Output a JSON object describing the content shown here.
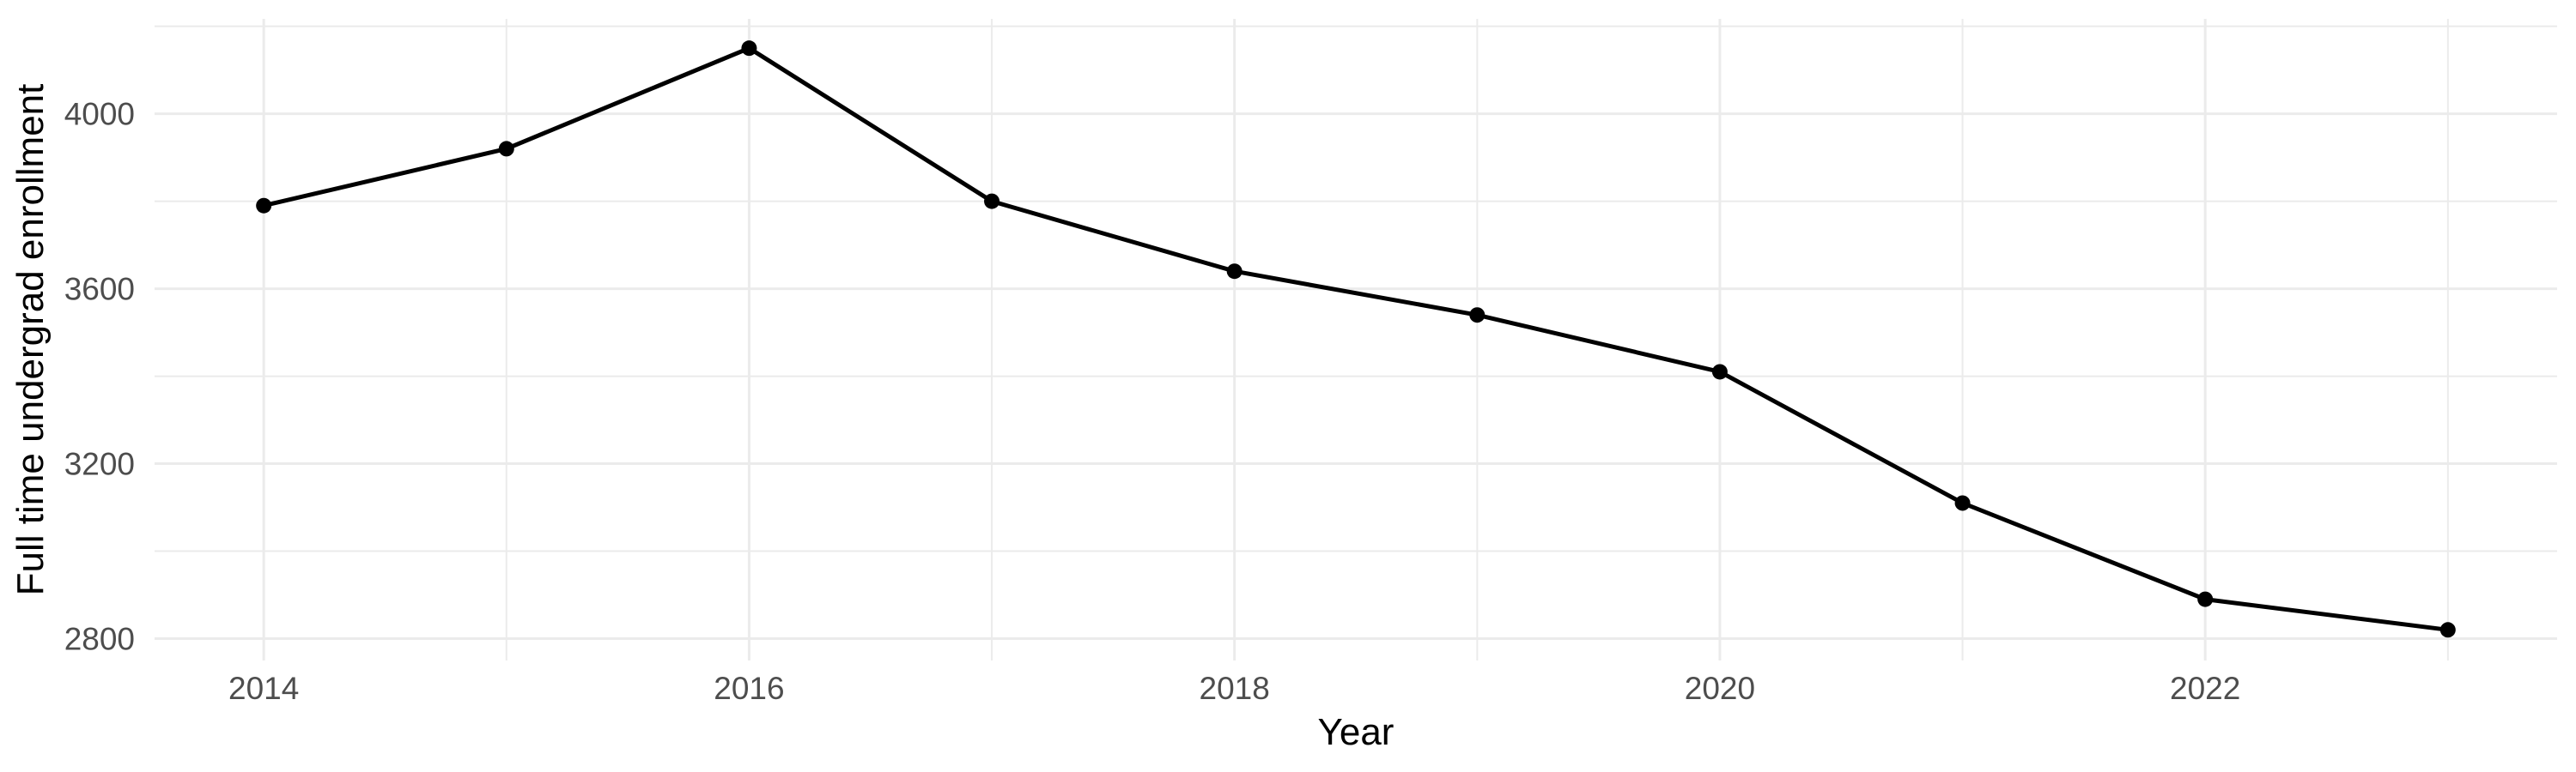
{
  "chart_data": {
    "type": "line",
    "title": "",
    "xlabel": "Year",
    "ylabel": "Full time undergrad enrollment",
    "x": [
      2014,
      2015,
      2016,
      2017,
      2018,
      2019,
      2020,
      2021,
      2022,
      2023
    ],
    "series": [
      {
        "name": "Full time undergrad enrollment",
        "values": [
          3790,
          3920,
          4150,
          3800,
          3640,
          3540,
          3410,
          3110,
          2890,
          2820
        ],
        "line_color": "#000000",
        "point_color": "#000000"
      }
    ],
    "x_ticks_major": [
      2014,
      2016,
      2018,
      2020,
      2022
    ],
    "x_ticks_minor": [
      2015,
      2017,
      2019,
      2021,
      2023
    ],
    "y_ticks_major": [
      2800,
      3200,
      3600,
      4000
    ],
    "y_ticks_minor": [
      3000,
      3400,
      3800,
      4200
    ],
    "xlim": [
      2013.55,
      2023.45
    ],
    "ylim": [
      2750,
      4217
    ],
    "grid": "major-and-minor",
    "legend": "none",
    "style": {
      "background": "#FFFFFF",
      "grid_color": "#EBEBEB",
      "grid_major_width": 3,
      "grid_minor_width": 2,
      "line_width": 5,
      "point_radius": 9,
      "tick_label_color": "#4D4D4D",
      "axis_title_color": "#000000"
    }
  }
}
